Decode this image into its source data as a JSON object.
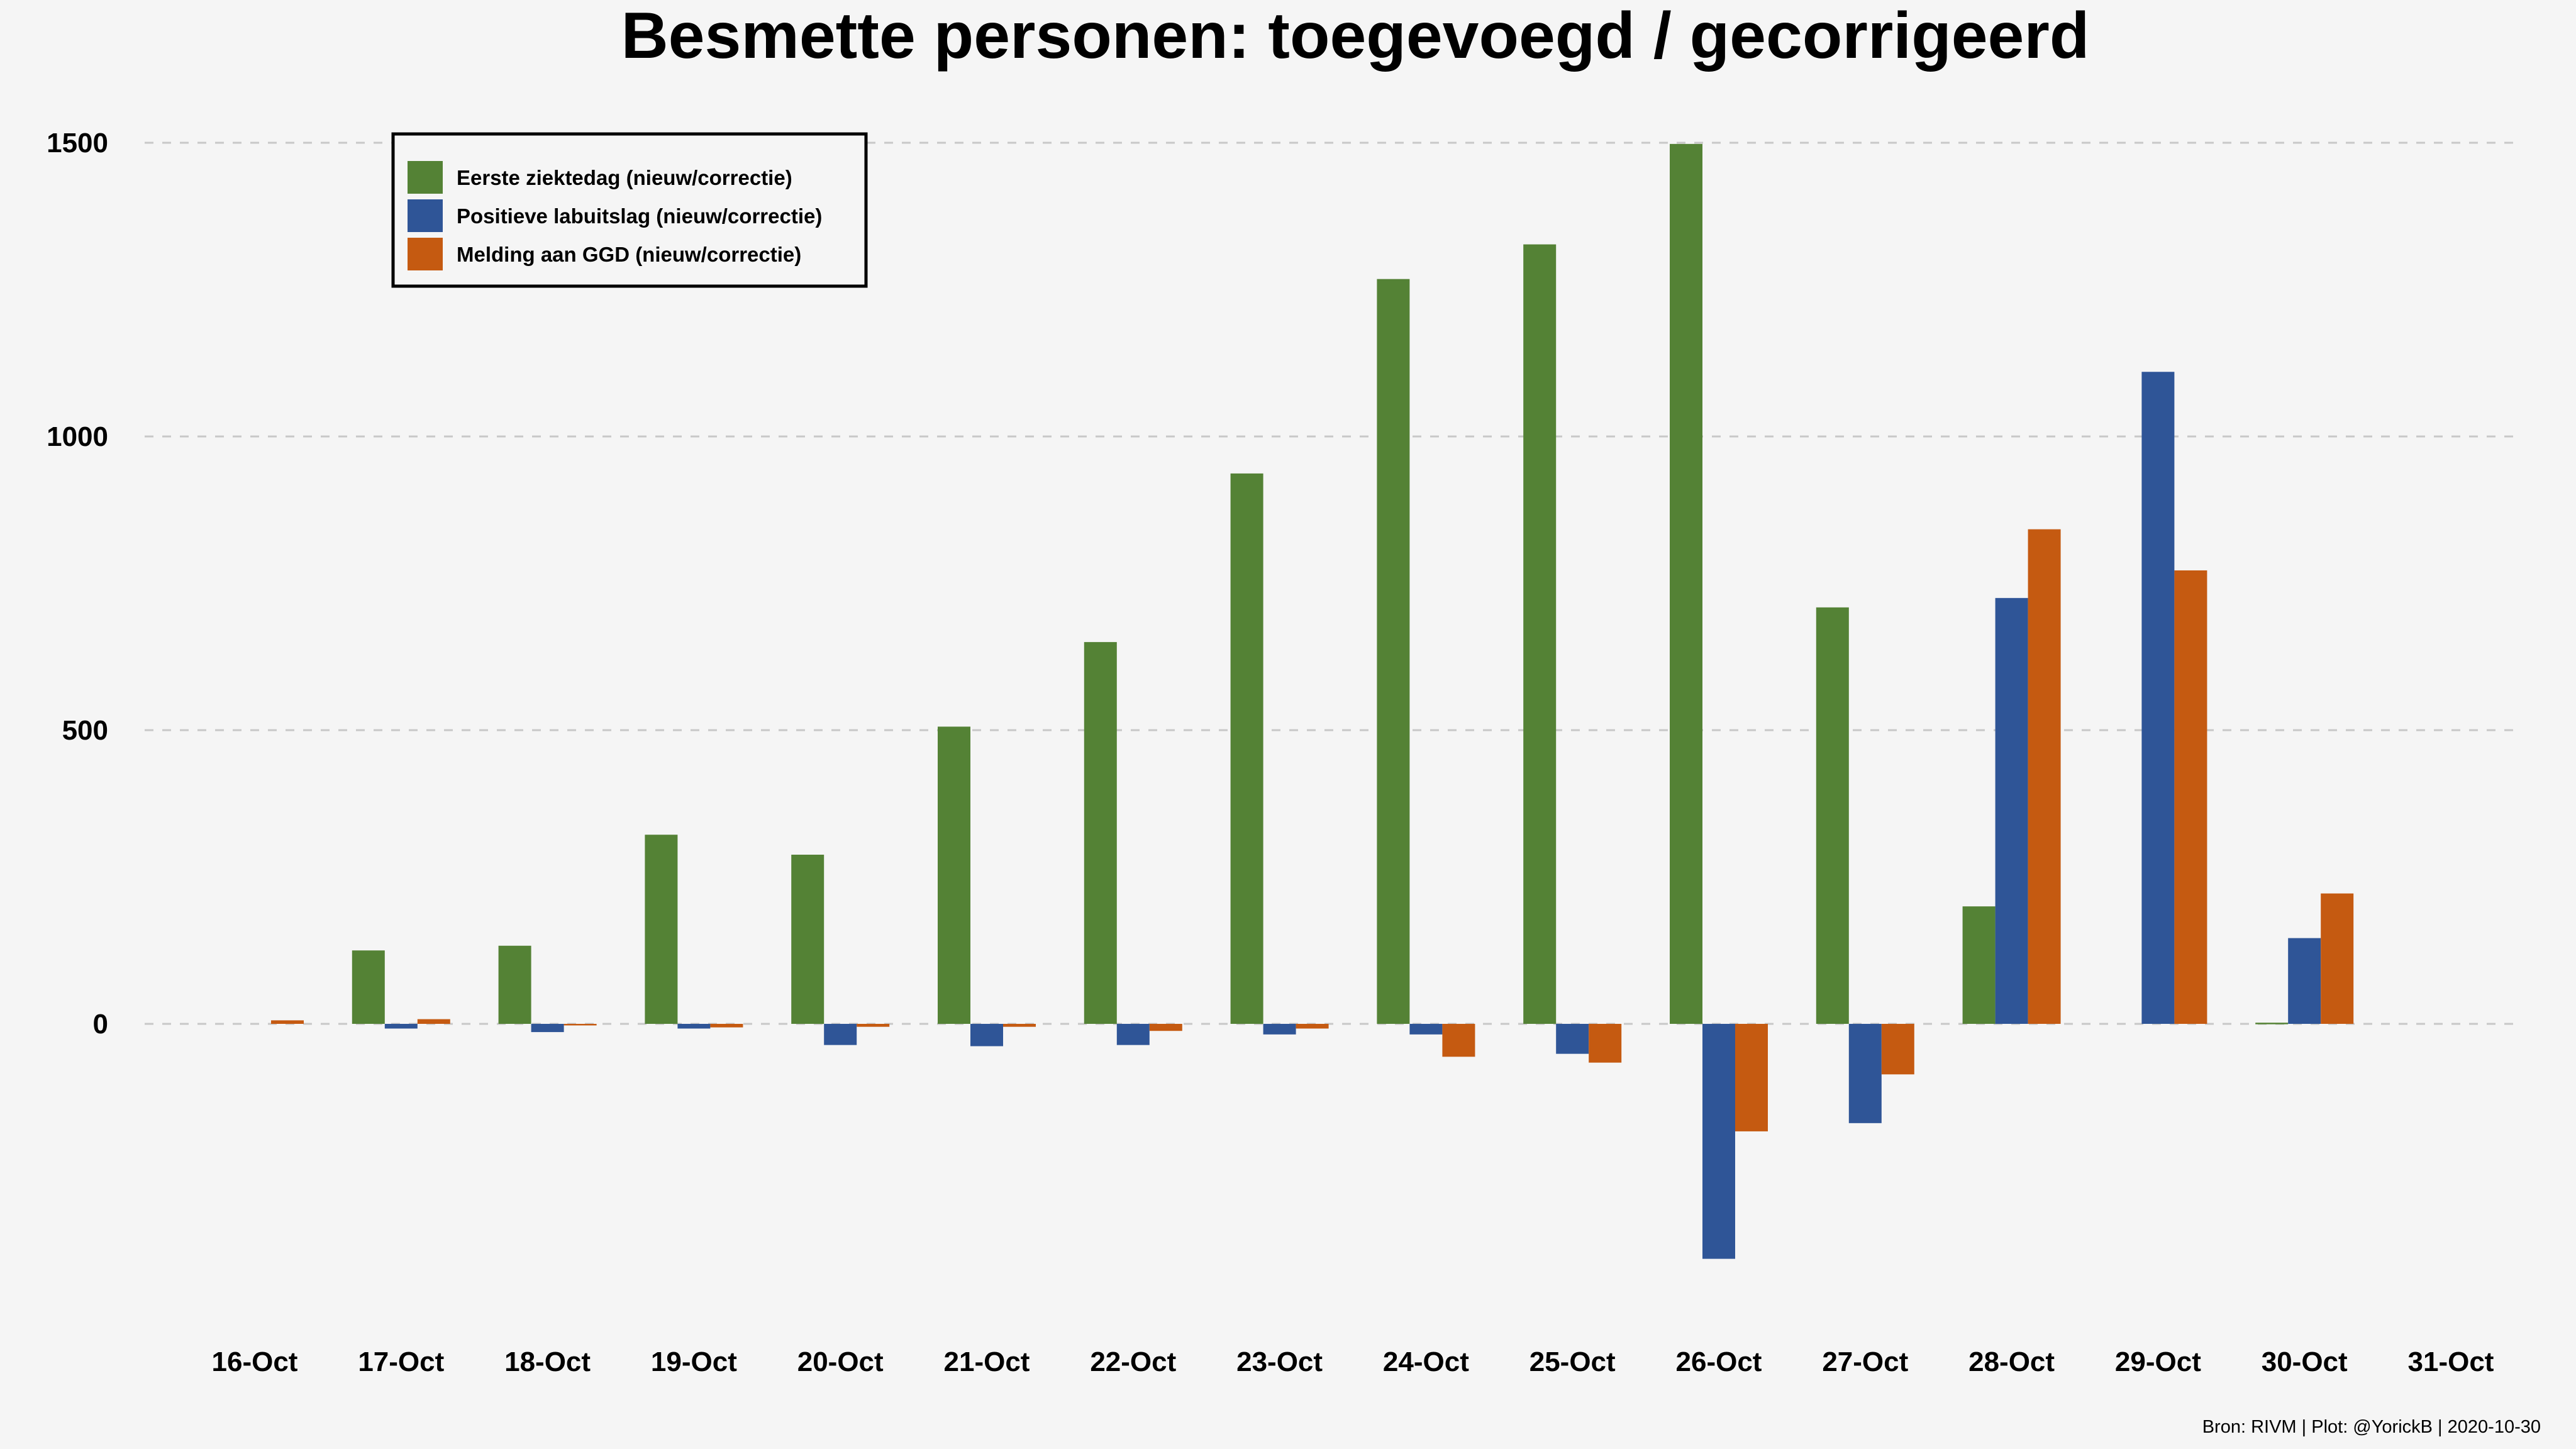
{
  "chart_data": {
    "type": "bar",
    "title": "Besmette personen: toegevoegd / gecorrigeerd",
    "xlabel": "",
    "ylabel": "",
    "categories": [
      "16-Oct",
      "17-Oct",
      "18-Oct",
      "19-Oct",
      "20-Oct",
      "21-Oct",
      "22-Oct",
      "23-Oct",
      "24-Oct",
      "25-Oct",
      "26-Oct",
      "27-Oct",
      "28-Oct",
      "29-Oct",
      "30-Oct",
      "31-Oct"
    ],
    "yticks": [
      "0",
      "500",
      "1000",
      "1500"
    ],
    "ylim": [
      -560,
      1500
    ],
    "grid": true,
    "legend_position": "top-left",
    "series": [
      {
        "name": "Eerste ziektedag (nieuw/correctie)",
        "color": "#548235",
        "values": [
          0,
          125,
          133,
          322,
          288,
          506,
          650,
          937,
          1268,
          1327,
          1498,
          709,
          200,
          0,
          2,
          0
        ]
      },
      {
        "name": "Positieve labuitslag (nieuw/correctie)",
        "color": "#2f5597",
        "values": [
          0,
          -8,
          -14,
          -8,
          -36,
          -38,
          -36,
          -18,
          -18,
          -51,
          -400,
          -169,
          725,
          1110,
          146,
          0
        ]
      },
      {
        "name": "Melding aan GGD (nieuw/correctie)",
        "color": "#c55a11",
        "values": [
          6,
          8,
          -2,
          -6,
          -5,
          -5,
          -12,
          -8,
          -56,
          -66,
          -183,
          -86,
          842,
          772,
          222,
          0
        ]
      }
    ]
  },
  "caption": "Bron: RIVM | Plot: @YorickB |  2020-10-30"
}
